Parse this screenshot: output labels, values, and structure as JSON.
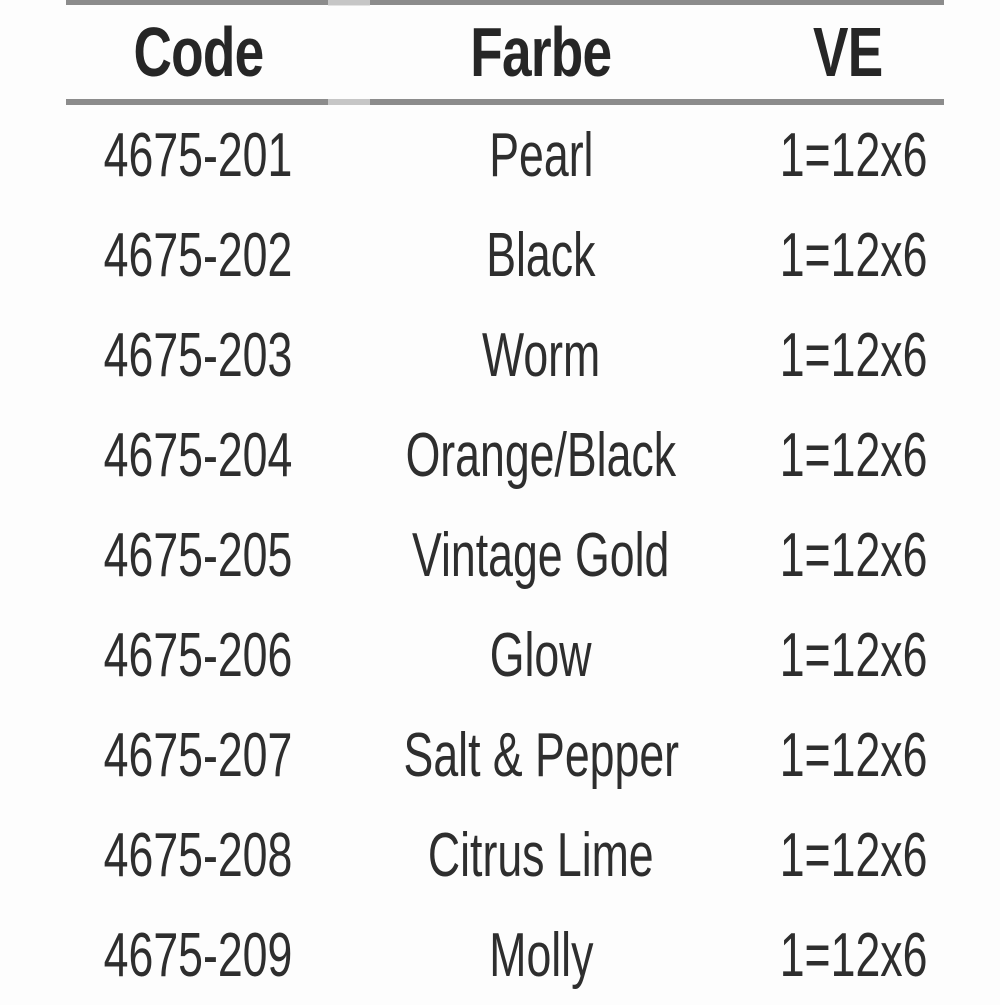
{
  "chart_data": {
    "type": "table",
    "title": "",
    "columns": [
      "Code",
      "Farbe",
      "VE"
    ],
    "rows": [
      {
        "code": "4675-201",
        "farbe": "Pearl",
        "ve": "1=12x6"
      },
      {
        "code": "4675-202",
        "farbe": "Black",
        "ve": "1=12x6"
      },
      {
        "code": "4675-203",
        "farbe": "Worm",
        "ve": "1=12x6"
      },
      {
        "code": "4675-204",
        "farbe": "Orange/Black",
        "ve": "1=12x6"
      },
      {
        "code": "4675-205",
        "farbe": "Vintage Gold",
        "ve": "1=12x6"
      },
      {
        "code": "4675-206",
        "farbe": "Glow",
        "ve": "1=12x6"
      },
      {
        "code": "4675-207",
        "farbe": "Salt & Pepper",
        "ve": "1=12x6"
      },
      {
        "code": "4675-208",
        "farbe": "Citrus Lime",
        "ve": "1=12x6"
      },
      {
        "code": "4675-209",
        "farbe": "Molly",
        "ve": "1=12x6"
      }
    ]
  },
  "colors": {
    "text": "#2a2a2a",
    "rule": "#8c8c8c",
    "background": "#fdfdfd"
  }
}
